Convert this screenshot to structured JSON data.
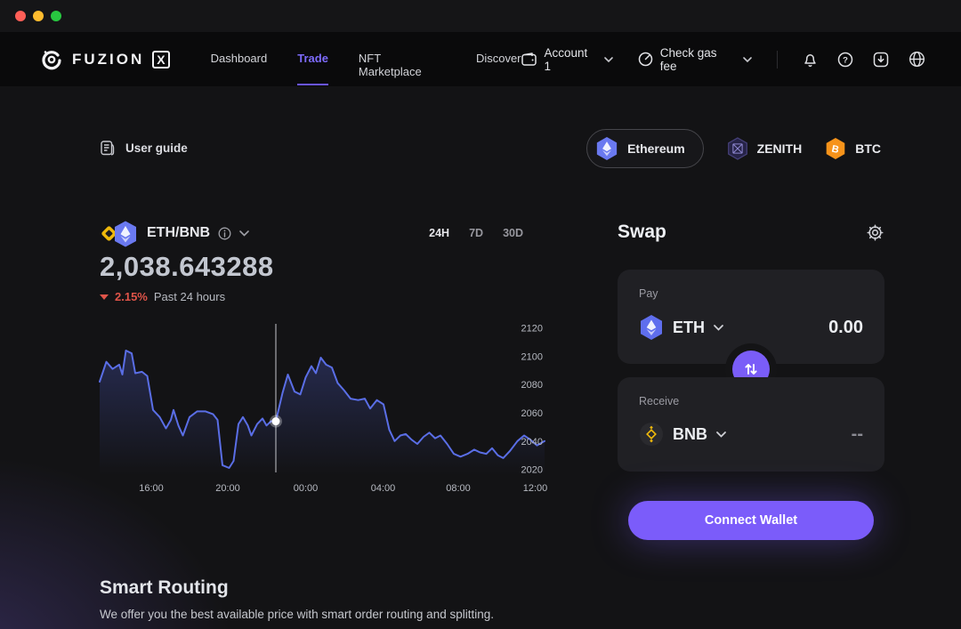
{
  "titlebar": {
    "buttons": [
      "close",
      "minimize",
      "zoom"
    ]
  },
  "nav": {
    "logo_word": "FUZION",
    "logo_x": "X",
    "items": [
      {
        "label": "Dashboard",
        "active": false
      },
      {
        "label": "Trade",
        "active": true
      },
      {
        "label": "NFT Marketplace",
        "active": false
      },
      {
        "label": "Discover",
        "active": false
      }
    ],
    "account": {
      "label": "Account 1",
      "icon": "wallet-icon"
    },
    "gas": {
      "label": "Check gas fee",
      "icon": "gauge-icon"
    },
    "icons": [
      "bell-icon",
      "help-icon",
      "download-icon",
      "globe-icon"
    ]
  },
  "user_guide": {
    "label": "User guide",
    "icon": "document-icon"
  },
  "networks": [
    {
      "label": "Ethereum",
      "icon": "eth-hex-icon",
      "active": true
    },
    {
      "label": "ZENITH",
      "icon": "zenith-hex-icon",
      "active": false
    },
    {
      "label": "BTC",
      "icon": "btc-hex-icon",
      "active": false
    }
  ],
  "market": {
    "pair": "ETH/BNB",
    "price": "2,038.643288",
    "change": "2.15%",
    "change_direction": "down",
    "period_label": "Past 24 hours",
    "ranges": [
      {
        "label": "24H",
        "active": true
      },
      {
        "label": "7D",
        "active": false
      },
      {
        "label": "30D",
        "active": false
      }
    ]
  },
  "chart_data": {
    "type": "area",
    "title": "ETH/BNB price, past 24 hours",
    "ylim": [
      2016,
      2126
    ],
    "y_ticks": [
      2120,
      2100,
      2080,
      2060,
      2040,
      2020
    ],
    "x_labels": [
      {
        "label": "16:00",
        "f": 0.116
      },
      {
        "label": "20:00",
        "f": 0.288
      },
      {
        "label": "00:00",
        "f": 0.463
      },
      {
        "label": "04:00",
        "f": 0.637
      },
      {
        "label": "08:00",
        "f": 0.806
      },
      {
        "label": "12:00",
        "f": 0.979
      }
    ],
    "crosshair": {
      "f": 0.396,
      "value": 2054
    },
    "points": [
      [
        0.0,
        2082
      ],
      [
        0.015,
        2096
      ],
      [
        0.029,
        2091
      ],
      [
        0.044,
        2094
      ],
      [
        0.051,
        2087
      ],
      [
        0.059,
        2104
      ],
      [
        0.072,
        2102
      ],
      [
        0.08,
        2088
      ],
      [
        0.095,
        2089
      ],
      [
        0.107,
        2086
      ],
      [
        0.12,
        2062
      ],
      [
        0.135,
        2057
      ],
      [
        0.149,
        2049
      ],
      [
        0.16,
        2055
      ],
      [
        0.166,
        2062
      ],
      [
        0.177,
        2051
      ],
      [
        0.187,
        2044
      ],
      [
        0.202,
        2057
      ],
      [
        0.219,
        2061
      ],
      [
        0.238,
        2061
      ],
      [
        0.255,
        2059
      ],
      [
        0.265,
        2055
      ],
      [
        0.276,
        2023
      ],
      [
        0.291,
        2021
      ],
      [
        0.301,
        2026
      ],
      [
        0.312,
        2052
      ],
      [
        0.322,
        2057
      ],
      [
        0.333,
        2051
      ],
      [
        0.341,
        2044
      ],
      [
        0.354,
        2052
      ],
      [
        0.366,
        2056
      ],
      [
        0.375,
        2051
      ],
      [
        0.385,
        2054
      ],
      [
        0.396,
        2054
      ],
      [
        0.411,
        2074
      ],
      [
        0.423,
        2087
      ],
      [
        0.438,
        2075
      ],
      [
        0.451,
        2073
      ],
      [
        0.463,
        2085
      ],
      [
        0.476,
        2093
      ],
      [
        0.486,
        2088
      ],
      [
        0.497,
        2099
      ],
      [
        0.509,
        2094
      ],
      [
        0.522,
        2092
      ],
      [
        0.535,
        2081
      ],
      [
        0.549,
        2076
      ],
      [
        0.564,
        2070
      ],
      [
        0.581,
        2069
      ],
      [
        0.596,
        2070
      ],
      [
        0.608,
        2063
      ],
      [
        0.623,
        2069
      ],
      [
        0.638,
        2066
      ],
      [
        0.651,
        2048
      ],
      [
        0.663,
        2040
      ],
      [
        0.676,
        2044
      ],
      [
        0.688,
        2045
      ],
      [
        0.701,
        2041
      ],
      [
        0.714,
        2038
      ],
      [
        0.728,
        2043
      ],
      [
        0.741,
        2046
      ],
      [
        0.754,
        2042
      ],
      [
        0.766,
        2044
      ],
      [
        0.781,
        2038
      ],
      [
        0.796,
        2031
      ],
      [
        0.811,
        2029
      ],
      [
        0.827,
        2031
      ],
      [
        0.842,
        2034
      ],
      [
        0.855,
        2032
      ],
      [
        0.869,
        2031
      ],
      [
        0.882,
        2035
      ],
      [
        0.895,
        2030
      ],
      [
        0.907,
        2028
      ],
      [
        0.922,
        2033
      ],
      [
        0.939,
        2040
      ],
      [
        0.954,
        2044
      ],
      [
        0.968,
        2041
      ],
      [
        0.983,
        2037
      ],
      [
        1.0,
        2040
      ]
    ]
  },
  "swap": {
    "title": "Swap",
    "pay": {
      "label": "Pay",
      "token": "ETH",
      "amount": "0.00",
      "icon": "eth-hex-icon"
    },
    "receive": {
      "label": "Receive",
      "token": "BNB",
      "amount": "--",
      "icon": "bnb-circle-icon"
    },
    "connect_label": "Connect Wallet"
  },
  "footer": {
    "title": "Smart Routing",
    "subtitle": "We offer you the best available price with smart order routing and splitting."
  },
  "colors": {
    "accent_purple": "#7b5cfa",
    "nav_active": "#7d6bfb",
    "chart_line": "#5a6ee6",
    "negative_red": "#df5449",
    "btc_orange": "#f7931a",
    "bnb_yellow": "#f0b90b",
    "traffic_red": "#ff5f57",
    "traffic_yellow": "#febc2e",
    "traffic_green": "#28c840"
  }
}
